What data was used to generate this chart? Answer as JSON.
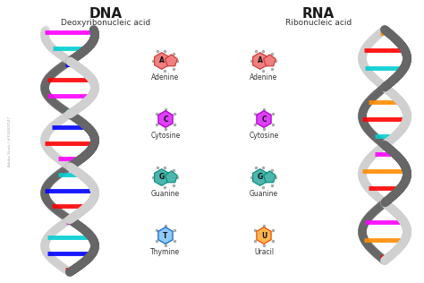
{
  "title_dna": "DNA",
  "title_rna": "RNA",
  "subtitle_dna": "Deoxyribonucleic acid",
  "subtitle_rna": "Ribonucleic acid",
  "bg_color": "#ffffff",
  "title_fontsize": 11,
  "subtitle_fontsize": 6.5,
  "label_fontsize": 5.5,
  "bases_dna": [
    "Adenine",
    "Cytosine",
    "Guanine",
    "Thymine"
  ],
  "bases_rna": [
    "Adenine",
    "Cytosine",
    "Guanine",
    "Uracil"
  ],
  "base_letters_dna": [
    "A",
    "C",
    "G",
    "T"
  ],
  "base_letters_rna": [
    "A",
    "C",
    "G",
    "U"
  ],
  "adenine_fill": "#f08080",
  "adenine_dark": "#cc3333",
  "cytosine_fill": "#e040fb",
  "cytosine_dark": "#aa00cc",
  "guanine_fill": "#4db6ac",
  "guanine_dark": "#00897b",
  "thymine_fill": "#90caf9",
  "thymine_dark": "#1565c0",
  "uracil_fill": "#ffb74d",
  "uracil_dark": "#e65100",
  "helix_dark": "#666666",
  "helix_light": "#d0d0d0",
  "rung_colors_dna": [
    "#ff0000",
    "#0000ff",
    "#00ced1",
    "#ff00ff",
    "#ff0000",
    "#0000ff",
    "#00ced1",
    "#ff00ff",
    "#ff0000",
    "#0000ff",
    "#00ced1",
    "#ff00ff",
    "#ff0000",
    "#0000ff",
    "#00ced1",
    "#ff00ff"
  ],
  "rung_colors_rna": [
    "#ff0000",
    "#ff8c00",
    "#ff00ff",
    "#00ced1",
    "#ff0000",
    "#ff8c00",
    "#ff00ff",
    "#00ced1",
    "#ff0000",
    "#ff8c00",
    "#ff00ff",
    "#00ced1",
    "#ff0000",
    "#ff8c00"
  ],
  "watermark": "Adobe Stock | #314003147"
}
